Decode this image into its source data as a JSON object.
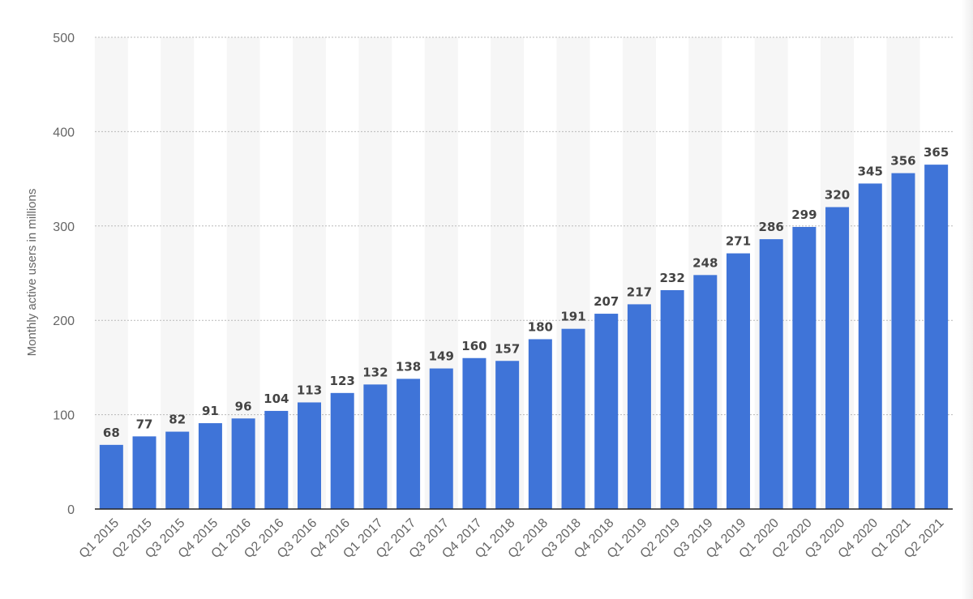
{
  "chart_data": {
    "type": "bar",
    "title": "",
    "xlabel": "",
    "ylabel": "Monthly active users in millions",
    "ylim": [
      0,
      500
    ],
    "yticks": [
      0,
      100,
      200,
      300,
      400,
      500
    ],
    "grid": true,
    "legend": "none",
    "colors": {
      "bar": "#3f74d8",
      "band": "#f6f6f6",
      "grid": "#b9b9b9",
      "axis": "#222222",
      "tick_text": "#666666",
      "label_text": "#444444"
    },
    "categories": [
      "Q1 2015",
      "Q2 2015",
      "Q3 2015",
      "Q4 2015",
      "Q1 2016",
      "Q2 2016",
      "Q3 2016",
      "Q4 2016",
      "Q1 2017",
      "Q2 2017",
      "Q3 2017",
      "Q4 2017",
      "Q1 2018",
      "Q2 2018",
      "Q3 2018",
      "Q4 2018",
      "Q1 2019",
      "Q2 2019",
      "Q3 2019",
      "Q4 2019",
      "Q1 2020",
      "Q2 2020",
      "Q3 2020",
      "Q4 2020",
      "Q1 2021",
      "Q2 2021"
    ],
    "values": [
      68,
      77,
      82,
      91,
      96,
      104,
      113,
      123,
      132,
      138,
      149,
      160,
      157,
      180,
      191,
      207,
      217,
      232,
      248,
      271,
      286,
      299,
      320,
      345,
      356,
      365
    ]
  }
}
